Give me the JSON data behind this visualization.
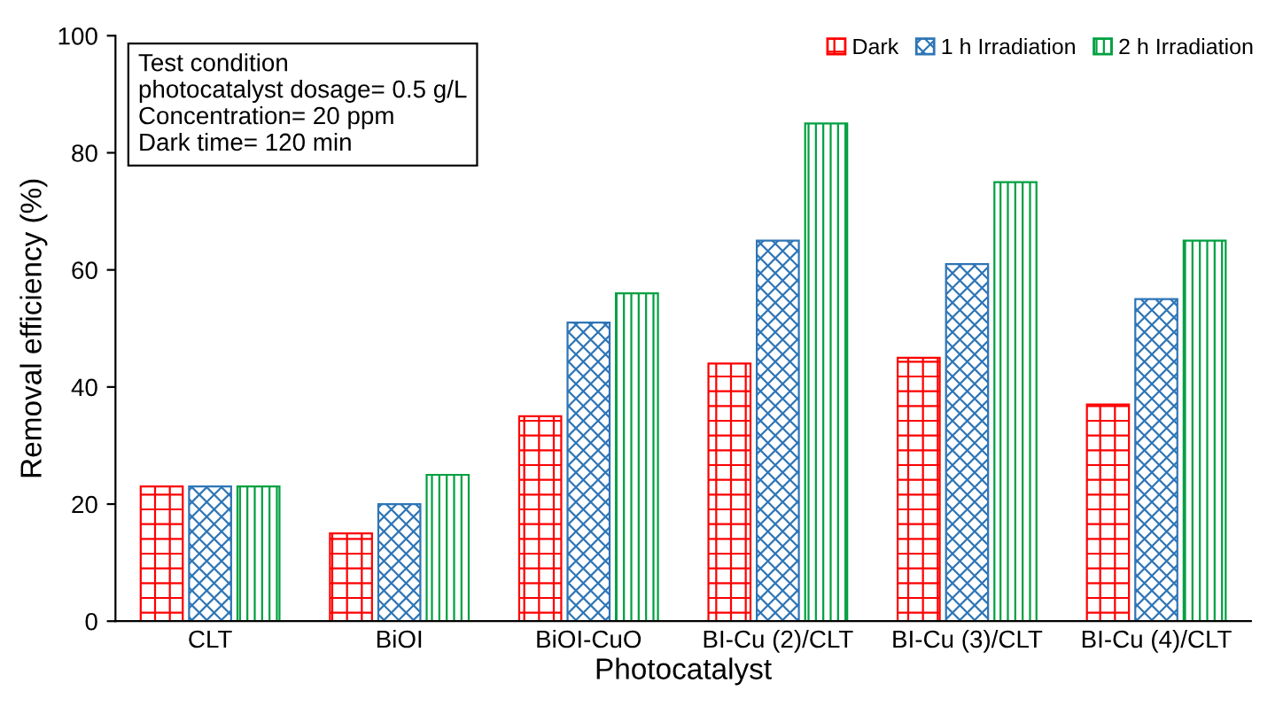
{
  "chart_data": {
    "type": "bar",
    "xlabel": "Photocatalyst",
    "ylabel": "Removal efficiency (%)",
    "categories": [
      "CLT",
      "BiOI",
      "BiOI-CuO",
      "BI-Cu (2)/CLT",
      "BI-Cu (3)/CLT",
      "BI-Cu (4)/CLT"
    ],
    "series": [
      {
        "name": "Dark",
        "color": "#ff0000",
        "values": [
          23,
          15,
          35,
          44,
          45,
          37
        ]
      },
      {
        "name": "1 h Irradiation",
        "color": "#2e75b6",
        "values": [
          23,
          20,
          51,
          65,
          61,
          55
        ]
      },
      {
        "name": "2 h Irradiation",
        "color": "#00a040",
        "values": [
          23,
          25,
          56,
          85,
          75,
          65
        ]
      }
    ],
    "ylim": [
      0,
      100
    ],
    "yticks": [
      0,
      20,
      40,
      60,
      80,
      100
    ],
    "grid": false,
    "legend": "top right",
    "annotations": [
      "Test condition\nphotocatalyst dosage= 0.5 g/L\nConcentration= 20 ppm\nDark time= 120 min"
    ]
  }
}
